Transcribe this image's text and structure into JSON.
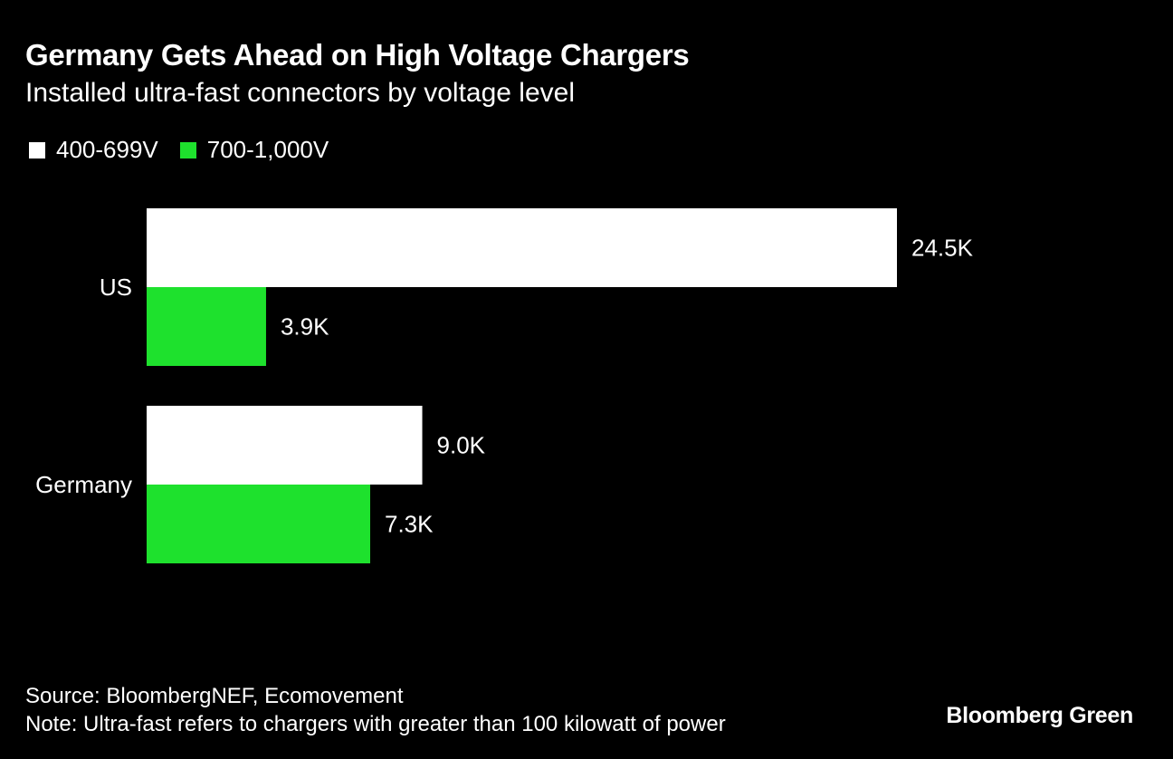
{
  "chart_data": {
    "type": "bar",
    "orientation": "horizontal",
    "title": "Germany Gets Ahead on High Voltage Chargers",
    "subtitle": "Installed ultra-fast connectors by voltage level",
    "categories": [
      "US",
      "Germany"
    ],
    "series": [
      {
        "name": "400-699V",
        "color": "#ffffff",
        "values": [
          24.5,
          9.0
        ],
        "labels": [
          "24.5K",
          "9.0K"
        ]
      },
      {
        "name": "700-1,000V",
        "color": "#1ee12d",
        "values": [
          3.9,
          7.3
        ],
        "labels": [
          "3.9K",
          "7.3K"
        ]
      }
    ],
    "xlim": [
      0,
      24.5
    ],
    "xlabel": "",
    "ylabel": "",
    "grid": false,
    "legend_position": "top-left"
  },
  "footer": {
    "source": "Source: BloombergNEF, Ecomovement",
    "note": "Note: Ultra-fast refers to chargers with greater than 100 kilowatt of power"
  },
  "brand": "Bloomberg Green"
}
